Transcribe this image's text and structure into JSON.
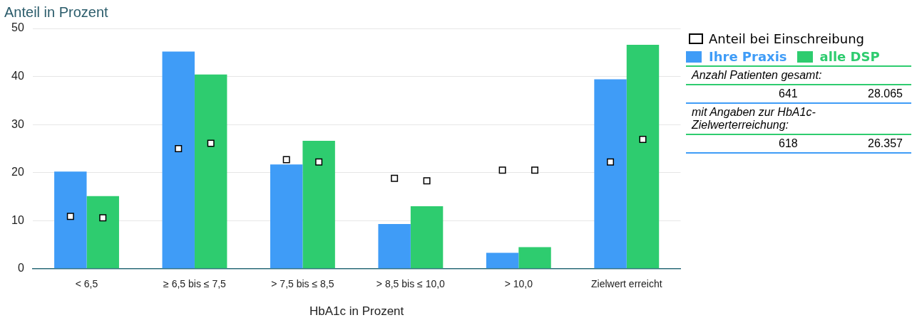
{
  "chart_data": {
    "type": "bar",
    "ylabel": "Anteil in Prozent",
    "xlabel": "HbA1c in Prozent",
    "categories": [
      "< 6,5",
      "≥ 6,5 bis ≤ 7,5",
      "> 7,5 bis ≤ 8,5",
      "> 8,5 bis ≤ 10,0",
      "> 10,0",
      "Zielwert erreicht"
    ],
    "series": [
      {
        "name": "Ihre Praxis",
        "color": "#3f9cf7",
        "values": [
          20.2,
          45.2,
          21.7,
          9.3,
          3.3,
          39.4
        ]
      },
      {
        "name": "alle DSP",
        "color": "#2ecc6f",
        "values": [
          15.1,
          40.4,
          26.6,
          13.0,
          4.5,
          46.6
        ]
      },
      {
        "name": "Anteil bei Einschreibung",
        "type": "scatter",
        "color": "#ffffff",
        "values": [
          10.9,
          25.0,
          22.7,
          18.8,
          20.5,
          22.2
        ]
      },
      {
        "type": "scatter",
        "color": "#ffffff",
        "values": [
          10.6,
          26.1,
          22.2,
          18.3,
          20.5,
          26.9
        ]
      }
    ],
    "marker": "square",
    "ylim": [
      0,
      50
    ],
    "yticks": [
      0,
      10,
      20,
      30,
      40,
      50
    ],
    "grid": "y",
    "legend": "top right",
    "annotations": [
      "Anzahl Patienten gesamt:",
      "641",
      "28.065",
      "mit Angaben zur HbA1c-Zielwerterreichung:",
      "618",
      "26.357"
    ]
  }
}
